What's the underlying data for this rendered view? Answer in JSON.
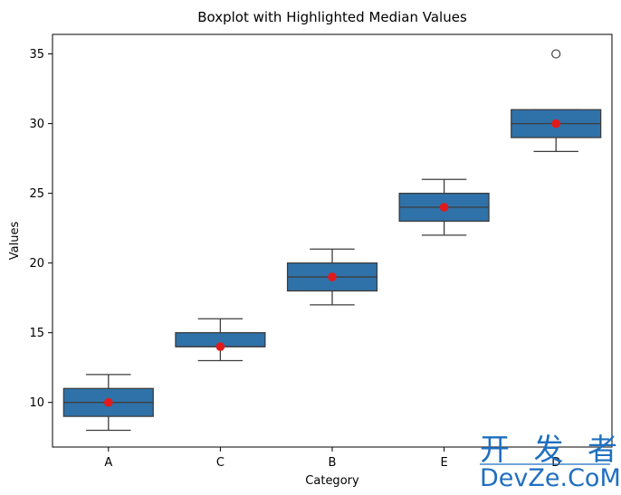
{
  "chart_data": {
    "type": "boxplot",
    "title": "Boxplot with Highlighted Median Values",
    "xlabel": "Category",
    "ylabel": "Values",
    "categories": [
      "A",
      "C",
      "B",
      "E",
      "D"
    ],
    "ylim": [
      6.8,
      36.4
    ],
    "yticks": [
      10,
      15,
      20,
      25,
      30,
      35
    ],
    "boxes": [
      {
        "category": "A",
        "whislo": 8,
        "q1": 9,
        "med": 10,
        "q3": 11,
        "whishi": 12,
        "fliers": []
      },
      {
        "category": "C",
        "whislo": 13,
        "q1": 14,
        "med": 14,
        "q3": 15,
        "whishi": 16,
        "fliers": []
      },
      {
        "category": "B",
        "whislo": 17,
        "q1": 18,
        "med": 19,
        "q3": 20,
        "whishi": 21,
        "fliers": []
      },
      {
        "category": "E",
        "whislo": 22,
        "q1": 23,
        "med": 24,
        "q3": 25,
        "whishi": 26,
        "fliers": []
      },
      {
        "category": "D",
        "whislo": 28,
        "q1": 29,
        "med": 30,
        "q3": 31,
        "whishi": 31,
        "fliers": [
          35
        ]
      }
    ],
    "median_markers": [
      10,
      14,
      19,
      24,
      30
    ],
    "box_color": "#2f72a9",
    "median_marker_color": "#e31a1c",
    "line_color": "#3d3d3d",
    "grid": false
  },
  "watermark": {
    "line1": "开 发 者",
    "line2": "DevZe.CoM",
    "color": "#1f6fc0"
  }
}
